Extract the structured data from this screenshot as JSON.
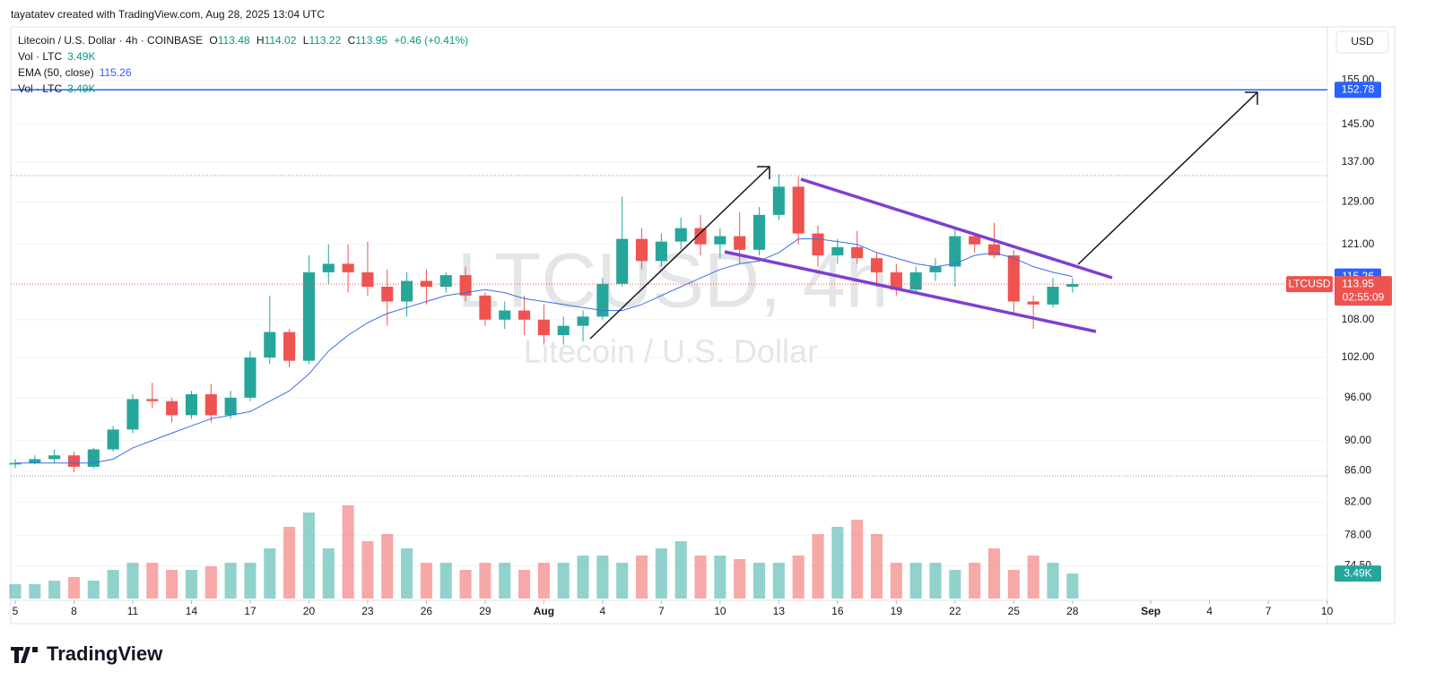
{
  "header": {
    "credit": "tayatatev created with TradingView.com, Aug 28, 2025 13:04 UTC",
    "currency": "USD"
  },
  "legend": {
    "symbol": "Litecoin / U.S. Dollar · 4h · COINBASE",
    "o_key": "O",
    "o": "113.48",
    "h_key": "H",
    "h": "114.02",
    "l_key": "L",
    "l": "113.22",
    "c_key": "C",
    "c": "113.95",
    "change": "+0.46 (+0.41%)",
    "vol_name": "Vol · LTC",
    "vol": "3.49K",
    "vol_name_2": "Vol · LTC",
    "vol_2": "3.49K"
  },
  "watermark": {
    "ticker": "LTCUSD, 4h",
    "name": "Litecoin / U.S. Dollar"
  },
  "footer": {
    "logo": "TradingView"
  },
  "chart_data": {
    "type": "candlestick",
    "log_scale": true,
    "up_color": "#26a69a",
    "down_color": "#ef5350",
    "x": [
      "2025-07-05",
      "2025-07-06",
      "2025-07-07",
      "2025-07-08",
      "2025-07-09",
      "2025-07-10",
      "2025-07-11",
      "2025-07-12",
      "2025-07-13",
      "2025-07-14",
      "2025-07-15",
      "2025-07-16",
      "2025-07-17",
      "2025-07-18",
      "2025-07-19",
      "2025-07-20",
      "2025-07-21",
      "2025-07-22",
      "2025-07-23",
      "2025-07-24",
      "2025-07-25",
      "2025-07-26",
      "2025-07-27",
      "2025-07-28",
      "2025-07-29",
      "2025-07-30",
      "2025-07-31",
      "2025-08-01",
      "2025-08-02",
      "2025-08-03",
      "2025-08-04",
      "2025-08-05",
      "2025-08-06",
      "2025-08-07",
      "2025-08-08",
      "2025-08-09",
      "2025-08-10",
      "2025-08-11",
      "2025-08-12",
      "2025-08-13",
      "2025-08-14",
      "2025-08-15",
      "2025-08-16",
      "2025-08-17",
      "2025-08-18",
      "2025-08-19",
      "2025-08-20",
      "2025-08-21",
      "2025-08-22",
      "2025-08-23",
      "2025-08-24",
      "2025-08-25",
      "2025-08-26",
      "2025-08-27",
      "2025-08-28"
    ],
    "open": [
      86.8,
      87,
      87.5,
      88,
      86.5,
      88.8,
      91.5,
      95.8,
      95.5,
      93.5,
      96.5,
      93.5,
      96,
      102,
      106,
      101.5,
      116,
      117.5,
      116,
      113.5,
      111,
      114.5,
      113.5,
      115.5,
      112,
      108,
      109.5,
      108,
      105.5,
      107,
      108.5,
      114,
      122,
      118,
      121.5,
      124,
      121,
      122.5,
      120,
      126.5,
      132,
      123,
      119,
      120.5,
      118.5,
      116,
      113,
      116,
      117,
      122.5,
      121,
      119,
      111,
      110.5,
      113.5
    ],
    "high": [
      87.5,
      88,
      88.8,
      88.5,
      89,
      92,
      96.5,
      98.2,
      96,
      97,
      98,
      97,
      103,
      112,
      106.5,
      119,
      121,
      121,
      121.5,
      116.5,
      116,
      116.5,
      116,
      117,
      112.5,
      111,
      112,
      110.5,
      108.5,
      109.5,
      115,
      130,
      124,
      123,
      126,
      126.5,
      124,
      127,
      128,
      134.5,
      134,
      124.5,
      122,
      123.5,
      119.5,
      117.5,
      117,
      118.5,
      124,
      123,
      125,
      120,
      112,
      115,
      115
    ],
    "low": [
      86.3,
      86.8,
      87,
      85.8,
      86.3,
      88.5,
      91,
      94.5,
      92.5,
      93,
      92.5,
      93,
      95.5,
      101,
      100.5,
      101,
      114,
      112.5,
      112,
      107,
      108.5,
      110.5,
      112.5,
      111,
      107,
      106.5,
      105.5,
      104,
      104,
      104.5,
      108,
      113.5,
      116.5,
      117,
      120,
      119,
      118.5,
      117.5,
      119,
      125.5,
      121,
      117,
      117.5,
      117.5,
      113.5,
      112,
      112.5,
      114.5,
      113.5,
      119.5,
      118.5,
      109,
      106.5,
      110,
      112.5
    ],
    "close": [
      87,
      87.5,
      88,
      86.5,
      88.8,
      91.5,
      95.8,
      95.5,
      93.5,
      96.5,
      93.5,
      96,
      102,
      106,
      101.5,
      116,
      117.5,
      116,
      113.5,
      111,
      114.5,
      113.5,
      115.5,
      112,
      108,
      109.5,
      108,
      105.5,
      107,
      108.5,
      114,
      122,
      118,
      121.5,
      124,
      121,
      122.5,
      120,
      126.5,
      132,
      123,
      119,
      120.5,
      118.5,
      116,
      113,
      116,
      117,
      122.5,
      121,
      119,
      111,
      110.5,
      113.5,
      113.95
    ],
    "last_price_label": "113.95",
    "symbol_label": "LTCUSD",
    "countdown": "02:55:09",
    "ema": {
      "name": "EMA (50, close)",
      "color": "#3d6ee0",
      "value_label": "115.26",
      "values": [
        87,
        87,
        87,
        87,
        87,
        87.5,
        89,
        90,
        91,
        92,
        93,
        93.5,
        94,
        95.5,
        97,
        99.5,
        103,
        105.5,
        107.5,
        109,
        110,
        111,
        112,
        112.5,
        113,
        112.5,
        111.5,
        111,
        110.5,
        110,
        109.5,
        109.5,
        110.5,
        112,
        113.5,
        115,
        116.5,
        117.5,
        118,
        119.5,
        122,
        122,
        121.5,
        121,
        119.5,
        118.5,
        117.5,
        117,
        117.5,
        119,
        119.5,
        118.5,
        117,
        116,
        115.26
      ]
    },
    "volume": {
      "values": [
        2,
        2,
        2.5,
        3,
        2.5,
        4,
        5,
        5,
        4,
        4,
        4.5,
        5,
        5,
        7,
        10,
        12,
        7,
        13,
        8,
        9,
        7,
        5,
        5,
        4,
        5,
        5,
        4,
        5,
        5,
        6,
        6,
        5,
        6,
        7,
        8,
        6,
        6,
        5.5,
        5,
        5,
        6,
        9,
        10,
        11,
        9,
        5,
        5,
        5,
        4,
        5,
        7,
        4,
        6,
        5,
        3.49
      ],
      "vlim": [
        0,
        20
      ],
      "last_label": "3.49K"
    },
    "hline": {
      "value": 152.78,
      "label": "152.78",
      "color": "#2962ff"
    },
    "xlim": [
      "2025-07-05",
      "2025-09-10"
    ],
    "xticks": [
      {
        "value": "2025-07-05",
        "label": "5"
      },
      {
        "value": "2025-07-08",
        "label": "8"
      },
      {
        "value": "2025-07-11",
        "label": "11"
      },
      {
        "value": "2025-07-14",
        "label": "14"
      },
      {
        "value": "2025-07-17",
        "label": "17"
      },
      {
        "value": "2025-07-20",
        "label": "20"
      },
      {
        "value": "2025-07-23",
        "label": "23"
      },
      {
        "value": "2025-07-26",
        "label": "26"
      },
      {
        "value": "2025-07-29",
        "label": "29"
      },
      {
        "value": "2025-08-01",
        "label": "Aug"
      },
      {
        "value": "2025-08-04",
        "label": "4"
      },
      {
        "value": "2025-08-07",
        "label": "7"
      },
      {
        "value": "2025-08-10",
        "label": "10"
      },
      {
        "value": "2025-08-13",
        "label": "13"
      },
      {
        "value": "2025-08-16",
        "label": "16"
      },
      {
        "value": "2025-08-19",
        "label": "19"
      },
      {
        "value": "2025-08-22",
        "label": "22"
      },
      {
        "value": "2025-08-25",
        "label": "25"
      },
      {
        "value": "2025-08-28",
        "label": "28"
      },
      {
        "value": "2025-09-01",
        "label": "Sep"
      },
      {
        "value": "2025-09-04",
        "label": "4"
      },
      {
        "value": "2025-09-07",
        "label": "7"
      },
      {
        "value": "2025-09-10",
        "label": "10"
      }
    ],
    "ylim": [
      70.9,
      168
    ],
    "yticks": [
      {
        "value": 155,
        "label": "155.00"
      },
      {
        "value": 145,
        "label": "145.00"
      },
      {
        "value": 137,
        "label": "137.00"
      },
      {
        "value": 129,
        "label": "129.00"
      },
      {
        "value": 121,
        "label": "121.00"
      },
      {
        "value": 108,
        "label": "108.00"
      },
      {
        "value": 102,
        "label": "102.00"
      },
      {
        "value": 96,
        "label": "96.00"
      },
      {
        "value": 90,
        "label": "90.00"
      },
      {
        "value": 86,
        "label": "86.00"
      },
      {
        "value": 82,
        "label": "82.00"
      },
      {
        "value": 78,
        "label": "78.00"
      },
      {
        "value": 74.5,
        "label": "74.50"
      }
    ]
  }
}
